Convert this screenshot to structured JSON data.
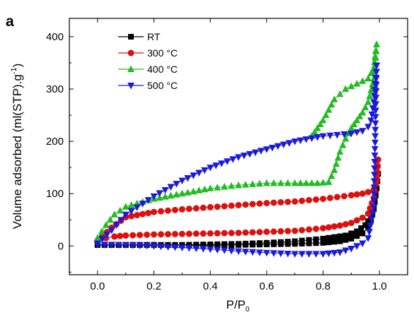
{
  "panel_label": "a",
  "chart_data": {
    "type": "scatter",
    "xlabel": "P/P",
    "xlabel_sub": "0",
    "ylabel": "Volume adsorbed (ml(STP).g",
    "ylabel_sup": "-1",
    "ylabel_end": ")",
    "xlim": [
      -0.1,
      1.1
    ],
    "ylim": [
      -55,
      435
    ],
    "xticks": [
      "0.0",
      "0.2",
      "0.4",
      "0.6",
      "0.8",
      "1.0"
    ],
    "yticks": [
      "0",
      "100",
      "200",
      "300",
      "400"
    ],
    "grid": false,
    "legend_position": "top-left",
    "series": [
      {
        "name": "RT",
        "legend_suffix": "",
        "color": "#000000",
        "marker": "square",
        "adsorption": [
          [
            0.0,
            2
          ],
          [
            0.1,
            2
          ],
          [
            0.2,
            2
          ],
          [
            0.3,
            1
          ],
          [
            0.4,
            1
          ],
          [
            0.5,
            2
          ],
          [
            0.6,
            3
          ],
          [
            0.7,
            4
          ],
          [
            0.8,
            6
          ],
          [
            0.86,
            9
          ],
          [
            0.9,
            14
          ],
          [
            0.94,
            24
          ],
          [
            0.96,
            35
          ],
          [
            0.97,
            50
          ],
          [
            0.98,
            70
          ],
          [
            0.99,
            110
          ],
          [
            0.995,
            138
          ]
        ],
        "desorption": [
          [
            0.995,
            138
          ],
          [
            0.99,
            110
          ],
          [
            0.98,
            75
          ],
          [
            0.97,
            55
          ],
          [
            0.95,
            40
          ],
          [
            0.92,
            28
          ],
          [
            0.88,
            20
          ],
          [
            0.8,
            14
          ],
          [
            0.7,
            9
          ],
          [
            0.6,
            6
          ],
          [
            0.5,
            4
          ],
          [
            0.4,
            3
          ],
          [
            0.3,
            2
          ],
          [
            0.2,
            2
          ],
          [
            0.1,
            2
          ],
          [
            0.0,
            2
          ]
        ]
      },
      {
        "name": "300",
        "legend_suffix": "°C",
        "color": "#dd1010",
        "marker": "circle",
        "adsorption": [
          [
            0.0,
            10
          ],
          [
            0.03,
            15
          ],
          [
            0.06,
            18
          ],
          [
            0.1,
            20
          ],
          [
            0.2,
            22
          ],
          [
            0.3,
            23
          ],
          [
            0.4,
            24
          ],
          [
            0.5,
            25
          ],
          [
            0.6,
            27
          ],
          [
            0.7,
            29
          ],
          [
            0.8,
            34
          ],
          [
            0.86,
            39
          ],
          [
            0.9,
            44
          ],
          [
            0.94,
            54
          ],
          [
            0.96,
            62
          ],
          [
            0.98,
            92
          ],
          [
            0.99,
            130
          ],
          [
            0.995,
            165
          ]
        ],
        "desorption": [
          [
            0.995,
            165
          ],
          [
            0.99,
            125
          ],
          [
            0.98,
            108
          ],
          [
            0.96,
            103
          ],
          [
            0.94,
            100
          ],
          [
            0.9,
            97
          ],
          [
            0.8,
            90
          ],
          [
            0.7,
            85
          ],
          [
            0.6,
            82
          ],
          [
            0.5,
            78
          ],
          [
            0.4,
            74
          ],
          [
            0.3,
            70
          ],
          [
            0.2,
            65
          ],
          [
            0.1,
            55
          ],
          [
            0.05,
            35
          ],
          [
            0.0,
            10
          ]
        ]
      },
      {
        "name": "400",
        "legend_suffix": "°C",
        "color": "#22bb22",
        "marker": "triangle-up",
        "adsorption": [
          [
            0.0,
            15
          ],
          [
            0.03,
            40
          ],
          [
            0.06,
            60
          ],
          [
            0.1,
            75
          ],
          [
            0.2,
            90
          ],
          [
            0.3,
            100
          ],
          [
            0.4,
            110
          ],
          [
            0.5,
            116
          ],
          [
            0.6,
            120
          ],
          [
            0.7,
            120
          ],
          [
            0.78,
            120
          ],
          [
            0.82,
            122
          ],
          [
            0.84,
            145
          ],
          [
            0.86,
            180
          ],
          [
            0.88,
            205
          ],
          [
            0.9,
            225
          ],
          [
            0.92,
            240
          ],
          [
            0.94,
            255
          ],
          [
            0.96,
            275
          ],
          [
            0.98,
            320
          ],
          [
            0.99,
            385
          ]
        ],
        "desorption": [
          [
            0.99,
            385
          ],
          [
            0.98,
            340
          ],
          [
            0.96,
            320
          ],
          [
            0.94,
            315
          ],
          [
            0.92,
            310
          ],
          [
            0.9,
            305
          ],
          [
            0.88,
            300
          ],
          [
            0.86,
            290
          ],
          [
            0.84,
            280
          ],
          [
            0.82,
            260
          ],
          [
            0.8,
            240
          ],
          [
            0.78,
            225
          ],
          [
            0.76,
            210
          ]
        ]
      },
      {
        "name": "500",
        "legend_suffix": "°C",
        "color": "#1a1add",
        "marker": "triangle-down",
        "adsorption": [
          [
            0.0,
            3
          ],
          [
            0.1,
            2
          ],
          [
            0.2,
            0
          ],
          [
            0.3,
            -3
          ],
          [
            0.4,
            -6
          ],
          [
            0.5,
            -10
          ],
          [
            0.6,
            -13
          ],
          [
            0.7,
            -15
          ],
          [
            0.8,
            -15
          ],
          [
            0.86,
            -12
          ],
          [
            0.9,
            -5
          ],
          [
            0.94,
            5
          ],
          [
            0.96,
            15
          ],
          [
            0.98,
            75
          ],
          [
            0.99,
            345
          ]
        ],
        "desorption": [
          [
            0.99,
            345
          ],
          [
            0.98,
            275
          ],
          [
            0.97,
            240
          ],
          [
            0.96,
            228
          ],
          [
            0.94,
            220
          ],
          [
            0.9,
            215
          ],
          [
            0.8,
            210
          ],
          [
            0.7,
            200
          ],
          [
            0.6,
            185
          ],
          [
            0.5,
            170
          ],
          [
            0.4,
            150
          ],
          [
            0.3,
            125
          ],
          [
            0.2,
            95
          ],
          [
            0.1,
            60
          ],
          [
            0.05,
            30
          ],
          [
            0.0,
            5
          ]
        ]
      }
    ]
  }
}
